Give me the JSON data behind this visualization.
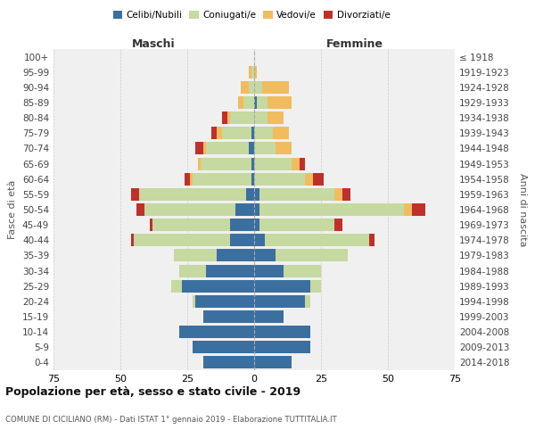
{
  "age_groups": [
    "0-4",
    "5-9",
    "10-14",
    "15-19",
    "20-24",
    "25-29",
    "30-34",
    "35-39",
    "40-44",
    "45-49",
    "50-54",
    "55-59",
    "60-64",
    "65-69",
    "70-74",
    "75-79",
    "80-84",
    "85-89",
    "90-94",
    "95-99",
    "100+"
  ],
  "birth_years": [
    "2014-2018",
    "2009-2013",
    "2004-2008",
    "1999-2003",
    "1994-1998",
    "1989-1993",
    "1984-1988",
    "1979-1983",
    "1974-1978",
    "1969-1973",
    "1964-1968",
    "1959-1963",
    "1954-1958",
    "1949-1953",
    "1944-1948",
    "1939-1943",
    "1934-1938",
    "1929-1933",
    "1924-1928",
    "1919-1923",
    "≤ 1918"
  ],
  "males": {
    "celibi": [
      19,
      23,
      28,
      19,
      22,
      27,
      18,
      14,
      9,
      9,
      7,
      3,
      1,
      1,
      2,
      1,
      0,
      0,
      0,
      0,
      0
    ],
    "coniugati": [
      0,
      0,
      0,
      0,
      1,
      4,
      10,
      16,
      36,
      29,
      34,
      40,
      22,
      19,
      16,
      11,
      9,
      4,
      2,
      1,
      0
    ],
    "vedovi": [
      0,
      0,
      0,
      0,
      0,
      0,
      0,
      0,
      0,
      0,
      0,
      0,
      1,
      1,
      1,
      2,
      1,
      2,
      3,
      1,
      0
    ],
    "divorziati": [
      0,
      0,
      0,
      0,
      0,
      0,
      0,
      0,
      1,
      1,
      3,
      3,
      2,
      0,
      3,
      2,
      2,
      0,
      0,
      0,
      0
    ]
  },
  "females": {
    "nubili": [
      14,
      21,
      21,
      11,
      19,
      21,
      11,
      8,
      4,
      2,
      2,
      2,
      0,
      0,
      0,
      0,
      0,
      1,
      0,
      0,
      0
    ],
    "coniugate": [
      0,
      0,
      0,
      0,
      2,
      4,
      14,
      27,
      39,
      28,
      54,
      28,
      19,
      14,
      8,
      7,
      5,
      4,
      3,
      0,
      0
    ],
    "vedove": [
      0,
      0,
      0,
      0,
      0,
      0,
      0,
      0,
      0,
      0,
      3,
      3,
      3,
      3,
      6,
      6,
      6,
      9,
      10,
      1,
      0
    ],
    "divorziate": [
      0,
      0,
      0,
      0,
      0,
      0,
      0,
      0,
      2,
      3,
      5,
      3,
      4,
      2,
      0,
      0,
      0,
      0,
      0,
      0,
      0
    ]
  },
  "color_celibi": "#3b6fa0",
  "color_coniugati": "#c5d9a0",
  "color_vedovi": "#f0bc5e",
  "color_divorziati": "#c0302a",
  "title": "Popolazione per età, sesso e stato civile - 2019",
  "subtitle": "COMUNE DI CICILIANO (RM) - Dati ISTAT 1° gennaio 2019 - Elaborazione TUTTITALIA.IT",
  "xlabel_left": "Maschi",
  "xlabel_right": "Femmine",
  "ylabel_left": "Fasce di età",
  "ylabel_right": "Anni di nascita",
  "xlim": 75,
  "bg_color": "#f0f0f0",
  "grid_color": "#cccccc"
}
